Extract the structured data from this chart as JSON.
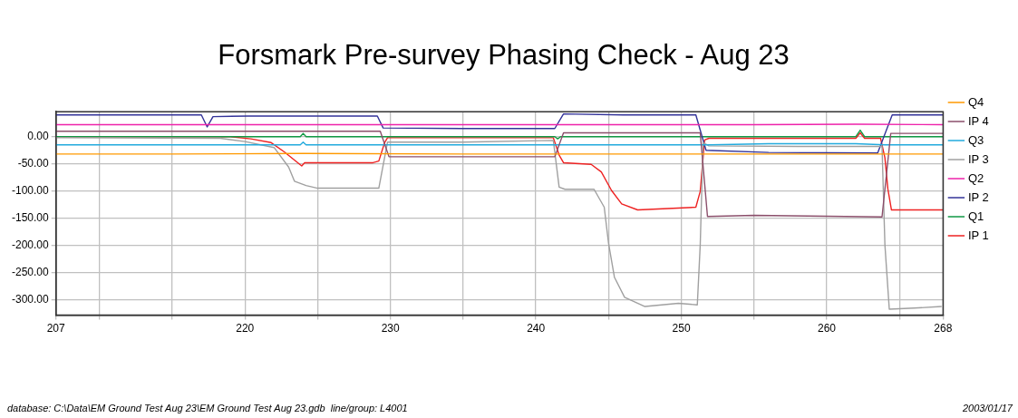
{
  "chart_data": {
    "type": "line",
    "title": "Forsmark Pre-survey Phasing Check - Aug 23",
    "annotations": [
      "database: C:\\Data\\EM Ground Test Aug 23\\EM Ground Test Aug 23.gdb  line/group: L4001",
      "2003/01/17"
    ],
    "xlim": [
      207,
      268
    ],
    "xticks": [
      207,
      {
        "value": 210,
        "label": null
      },
      {
        "value": 215,
        "label": null
      },
      220,
      {
        "value": 225,
        "label": null
      },
      230,
      {
        "value": 235,
        "label": null
      },
      240,
      {
        "value": 245,
        "label": null
      },
      250,
      {
        "value": 255,
        "label": null
      },
      260,
      {
        "value": 265,
        "label": null
      },
      268
    ],
    "ylim": [
      -329,
      46
    ],
    "yticks": [
      {
        "value": -300,
        "label": "-300.00"
      },
      {
        "value": -250,
        "label": "-250.00"
      },
      {
        "value": -200,
        "label": "-200.00"
      },
      {
        "value": -150,
        "label": "-150.00"
      },
      {
        "value": -100,
        "label": "-100.00"
      },
      {
        "value": -50,
        "label": "-50.00"
      },
      {
        "value": 0,
        "label": "0.00"
      }
    ],
    "grid": true,
    "legend": "right",
    "marker": "none",
    "series": [
      {
        "name": "Q4",
        "color": "#ff9900",
        "x": [
          207,
          215,
          224,
          235,
          248,
          255,
          264,
          268
        ],
        "values": [
          -32,
          -32,
          -31,
          -32,
          -32,
          -32,
          -32,
          -32
        ]
      },
      {
        "name": "IP 4",
        "color": "#8b4f6b",
        "x": [
          207,
          215,
          229.3,
          229.9,
          241.3,
          241.9,
          251.3,
          251.8,
          255,
          263.8,
          264.4,
          268
        ],
        "values": [
          10,
          10,
          10,
          -37,
          -37,
          7,
          7,
          -147,
          -145,
          -148,
          6,
          6
        ]
      },
      {
        "name": "Q3",
        "color": "#22aadd",
        "x": [
          207,
          223.8,
          224,
          224.2,
          235,
          252,
          256,
          262,
          264,
          268
        ],
        "values": [
          -15,
          -15,
          -10,
          -15,
          -15,
          -15,
          -13,
          -13,
          -15,
          -15
        ]
      },
      {
        "name": "IP 3",
        "color": "#a0a0a0",
        "x": [
          207,
          218.3,
          220,
          222,
          223,
          223.4,
          224.2,
          225,
          229.2,
          229.8,
          235,
          241.2,
          241.6,
          242,
          244,
          244.7,
          245,
          245.4,
          246.1,
          247.5,
          249.8,
          251.1,
          251.3,
          251.5,
          251.9,
          258,
          263.8,
          264,
          264.3,
          266,
          267.9
        ],
        "values": [
          -2,
          -3,
          -9,
          -20,
          -56,
          -82,
          -90,
          -95,
          -95,
          -10,
          -10,
          -7,
          -93,
          -97,
          -97,
          -130,
          -197,
          -259,
          -296,
          -313,
          -307,
          -310,
          -200,
          -11,
          -17,
          -18,
          -18,
          -200,
          -318,
          -316,
          -313
        ]
      },
      {
        "name": "Q2",
        "color": "#ee22aa",
        "x": [
          207,
          212,
          217,
          222,
          230,
          240,
          250,
          255,
          262,
          268
        ],
        "values": [
          22,
          22,
          22,
          22,
          22,
          22,
          22,
          22,
          23,
          22
        ]
      },
      {
        "name": "IP 2",
        "color": "#333399",
        "x": [
          207,
          217,
          217.4,
          217.8,
          220.2,
          229.1,
          229.5,
          235,
          241.3,
          241.9,
          246,
          251,
          251.7,
          256,
          263.5,
          264.5,
          268
        ],
        "values": [
          40,
          40,
          18,
          37,
          38,
          38,
          16,
          15,
          15,
          42,
          40,
          40,
          -25,
          -29,
          -30,
          40,
          40
        ]
      },
      {
        "name": "Q1",
        "color": "#119944",
        "x": [
          207,
          223.8,
          224,
          224.2,
          241.3,
          241.5,
          241.7,
          262,
          262.3,
          262.6,
          268
        ],
        "values": [
          0,
          0,
          6,
          0,
          0,
          -4,
          0,
          0,
          12,
          0,
          0
        ]
      },
      {
        "name": "IP 1",
        "color": "#ee2222",
        "x": [
          207,
          219,
          220.4,
          221.8,
          222.7,
          223.9,
          224.1,
          228.8,
          229.2,
          229.6,
          229.8,
          241.2,
          241.6,
          241.9,
          243.8,
          244.5,
          245.2,
          245.9,
          247,
          251,
          251.3,
          251.6,
          251.9,
          262,
          262.3,
          262.6,
          263.7,
          264,
          264.2,
          264.45,
          268
        ],
        "values": [
          0,
          0,
          -4,
          -11,
          -28,
          -54,
          -48,
          -48,
          -45,
          -11,
          -2,
          -2,
          -34,
          -48,
          -51,
          -65,
          -99,
          -124,
          -135,
          -130,
          -101,
          -6,
          -3,
          -3,
          7,
          -3,
          -3,
          -39,
          -96,
          -135,
          -135
        ]
      }
    ]
  }
}
